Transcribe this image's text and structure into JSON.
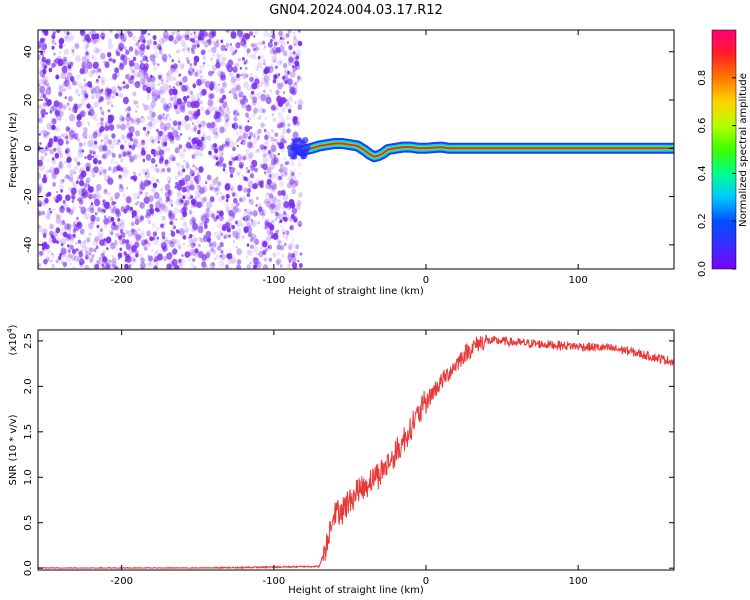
{
  "title": "GN04.2024.004.03.17.R12",
  "colors": {
    "scatter": "#7a2cf0",
    "snr_line": "#e83838",
    "frame": "#000000",
    "colorbar": [
      "#7a00ff",
      "#3a2cff",
      "#0050ff",
      "#00c8ff",
      "#00ff8c",
      "#3cff00",
      "#b4ff00",
      "#ffd200",
      "#ff7800",
      "#ff1e28",
      "#ff0078"
    ]
  },
  "chart_data": [
    {
      "type": "scatter",
      "title": "",
      "xlabel": "Height of straight line (km)",
      "ylabel": "Frequency (Hz)",
      "xlim": [
        -255,
        163
      ],
      "ylim": [
        -50,
        49
      ],
      "xticks": [
        -200,
        -100,
        0,
        100
      ],
      "yticks": [
        -40,
        -20,
        0,
        20,
        40
      ],
      "noise_region_x": [
        -255,
        -82
      ],
      "signal_track": {
        "x": [
          -82,
          -75,
          -70,
          -65,
          -60,
          -55,
          -50,
          -45,
          -40,
          -37,
          -34,
          -31,
          -28,
          -25,
          -20,
          -15,
          -10,
          -5,
          0,
          5,
          10,
          15,
          20,
          30,
          40,
          60,
          80,
          100,
          120,
          140,
          163
        ],
        "y": [
          -1,
          0,
          1,
          1.5,
          2,
          2,
          1.5,
          1,
          -1,
          -2.5,
          -3.5,
          -3,
          -2,
          -0.5,
          0,
          0.5,
          0.5,
          0,
          0,
          0.3,
          0.5,
          0,
          0,
          0,
          0,
          0,
          0,
          0,
          0,
          0,
          0
        ]
      },
      "colorbar": {
        "label": "Normalized spectral amplitude",
        "range": [
          0,
          1
        ],
        "ticks": [
          "0.0",
          "0.2",
          "0.4",
          "0.6",
          "0.8"
        ]
      }
    },
    {
      "type": "line",
      "title": "",
      "xlabel": "Height of straight line (km)",
      "ylabel": "SNR (10 * v/v)",
      "scale_label": "(x10",
      "scale_exp": "4",
      "scale_close": ")",
      "xlim": [
        -255,
        163
      ],
      "ylim": [
        -0.02,
        2.62
      ],
      "xticks": [
        -200,
        -100,
        0,
        100
      ],
      "yticks": [
        "0.0",
        "0.5",
        "1.0",
        "1.5",
        "2.0",
        "2.5"
      ],
      "series": [
        {
          "x": [
            -255,
            -150,
            -70,
            -65,
            -62,
            -60,
            -55,
            -50,
            -45,
            -40,
            -35,
            -30,
            -25,
            -20,
            -15,
            -10,
            -5,
            0,
            5,
            10,
            15,
            20,
            25,
            30,
            35,
            40,
            50,
            60,
            70,
            80,
            90,
            100,
            110,
            120,
            130,
            140,
            150,
            163
          ],
          "values": [
            0.0,
            0.0,
            0.02,
            0.3,
            0.55,
            0.6,
            0.65,
            0.75,
            0.85,
            0.9,
            1.0,
            1.05,
            1.15,
            1.25,
            1.4,
            1.55,
            1.7,
            1.82,
            1.95,
            2.05,
            2.15,
            2.25,
            2.35,
            2.42,
            2.48,
            2.5,
            2.5,
            2.48,
            2.47,
            2.46,
            2.45,
            2.44,
            2.43,
            2.42,
            2.4,
            2.36,
            2.32,
            2.27
          ]
        }
      ]
    }
  ]
}
